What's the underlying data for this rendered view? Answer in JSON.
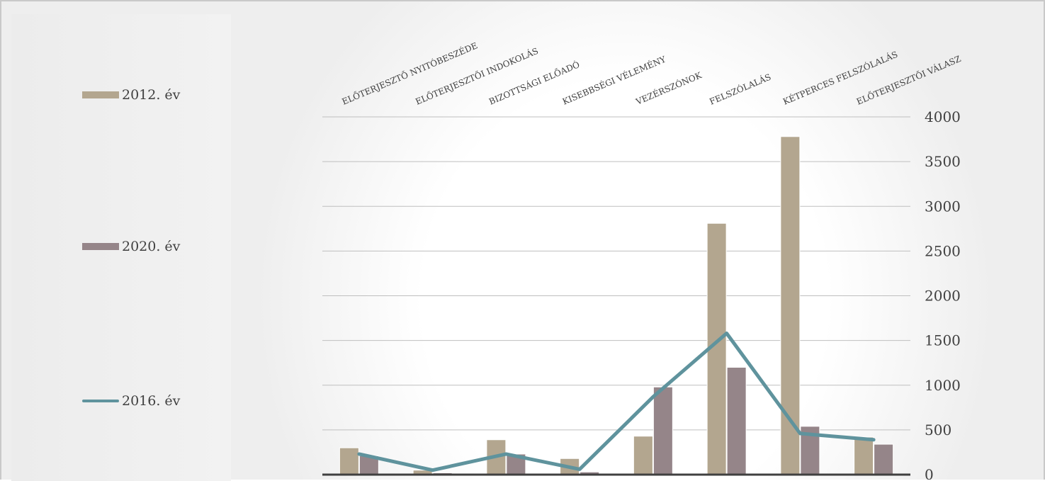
{
  "chart_data": {
    "type": "bar",
    "categories": [
      "ELŐTERJESZTŐ NYITÓBESZÉDE",
      "ELŐTERJESZTŐI INDOKOLÁS",
      "BIZOTTSÁGI ELŐADÓ",
      "KISEBBSÉGI VÉLEMÉNY",
      "VEZÉRSZÓNOK",
      "FELSZÓLALÁS",
      "KÉTPERCES FELSZÓLALÁS",
      "ELŐTERJESZTŐI VÁLASZ"
    ],
    "series": [
      {
        "name": "2012. év",
        "type": "bar",
        "color": "#b3a68f",
        "values": [
          300,
          50,
          390,
          180,
          430,
          2810,
          3780,
          420
        ]
      },
      {
        "name": "2020. év",
        "type": "bar",
        "color": "#958589",
        "values": [
          210,
          20,
          230,
          30,
          980,
          1200,
          540,
          340
        ]
      },
      {
        "name": "2016. év",
        "type": "line",
        "color": "#5f939d",
        "values": [
          230,
          50,
          230,
          60,
          870,
          1580,
          460,
          390
        ]
      }
    ],
    "y_axis": {
      "position": "right",
      "min": 0,
      "max": 4000,
      "step": 500
    },
    "ticks": [
      "0",
      "500",
      "1000",
      "1500",
      "2000",
      "2500",
      "3000",
      "3500",
      "4000"
    ],
    "x_labels_position": "top-rotated",
    "grid": true,
    "legend_position": "left"
  }
}
